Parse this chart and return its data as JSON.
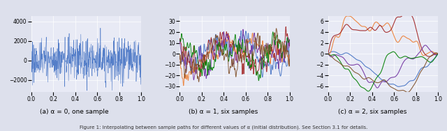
{
  "subplot_titles": [
    "(a) α = 0, one sample",
    "(b) α = 1, six samples",
    "(c) α = 2, six samples"
  ],
  "figsize": [
    6.4,
    1.88
  ],
  "dpi": 100,
  "bg_color": "#dde0ec",
  "plot_bg_color": "#e8eaf5",
  "n_points": 500,
  "colors_multi": [
    "#4472c4",
    "#ed7d31",
    "#a02020",
    "#7030a0",
    "#008000",
    "#7f4f28"
  ],
  "color_single": "#4472c4",
  "alpha0_ylim": [
    -3200,
    4600
  ],
  "alpha1_ylim": [
    -35,
    35
  ],
  "alpha2_ylim": [
    -7,
    7
  ],
  "title_fontsize": 6.5,
  "tick_fontsize": 5.5,
  "caption": "Figure 1: Interpolating between sample paths for different values of α (initial distribution). See Section 3.1 for details.",
  "caption_fontsize": 5.0
}
